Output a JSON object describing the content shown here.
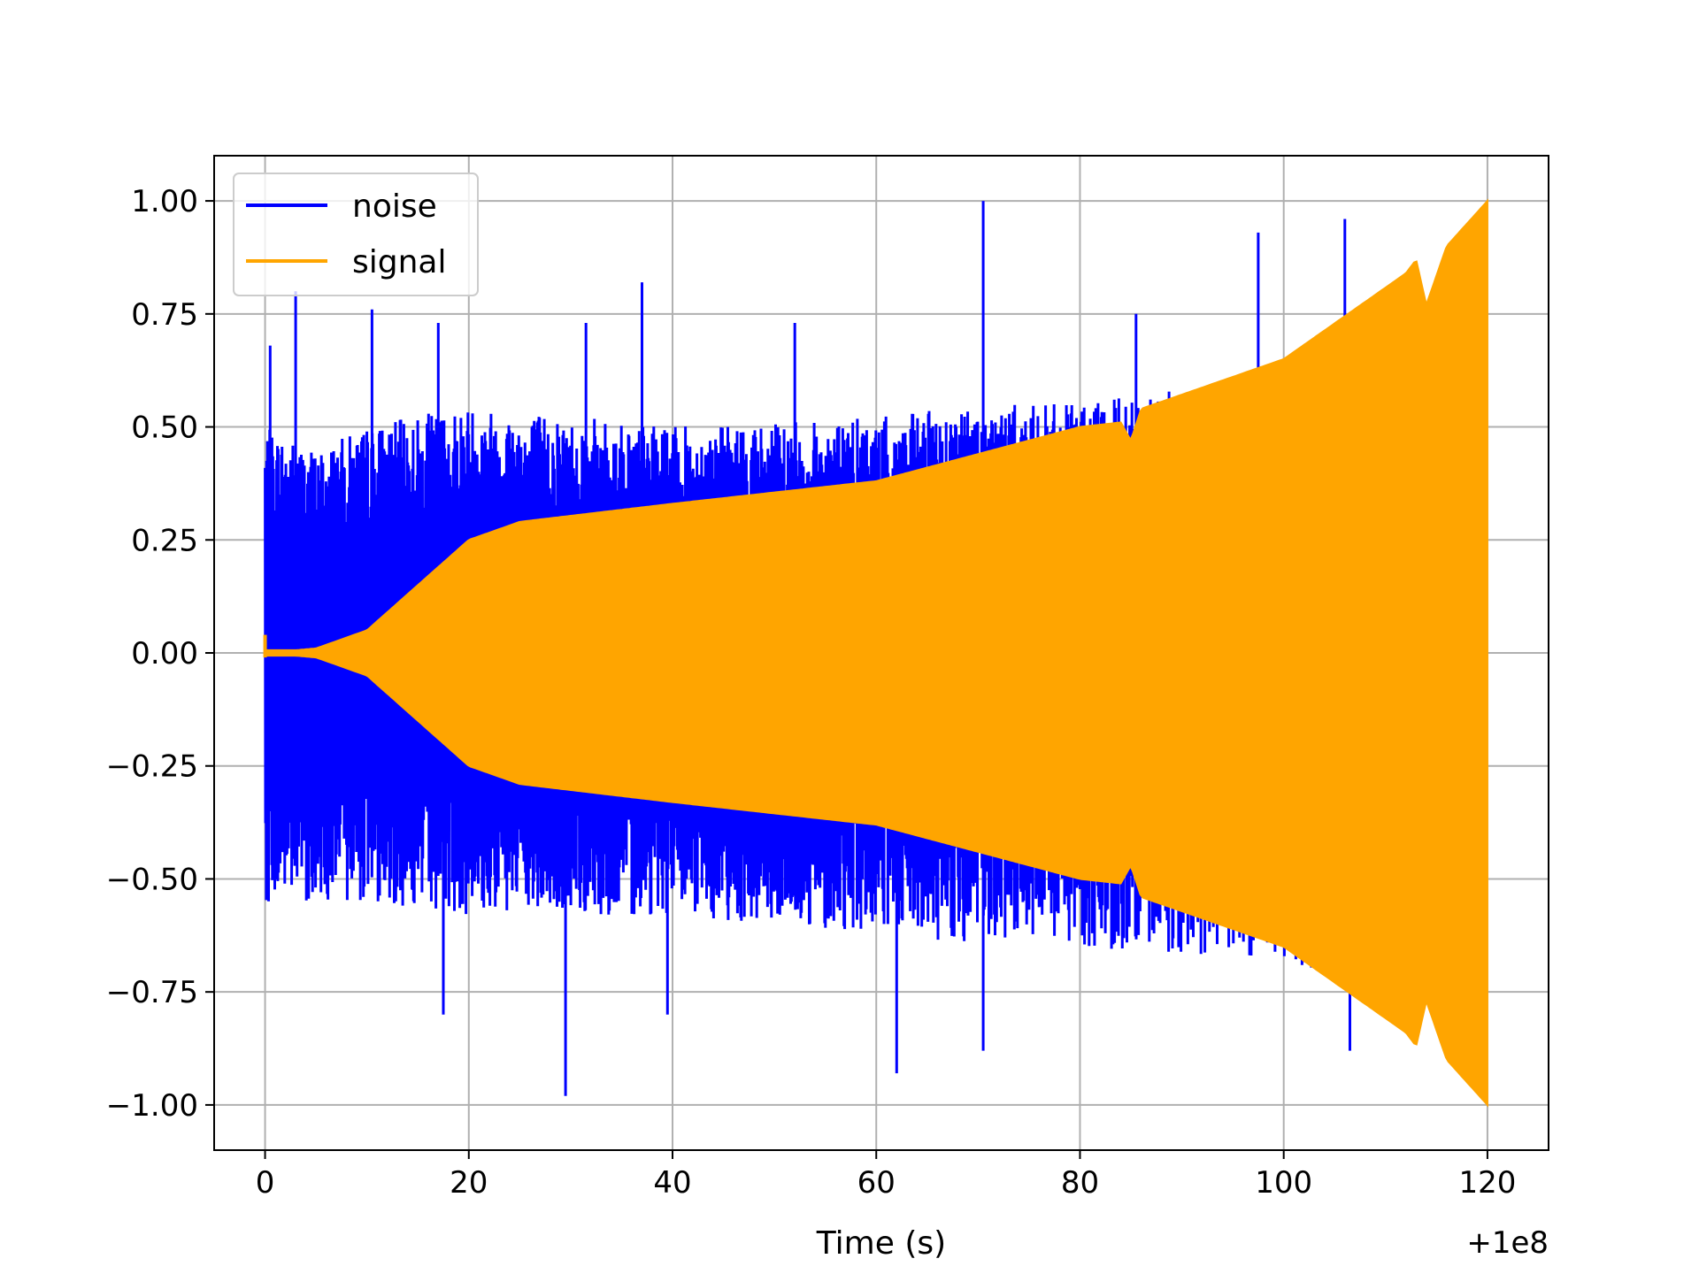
{
  "chart_data": {
    "type": "line",
    "xlabel": "Time (s)",
    "x_offset_label": "+1e8",
    "xlim": [
      -5,
      126
    ],
    "ylim": [
      -1.1,
      1.1
    ],
    "x_ticks": [
      0,
      20,
      40,
      60,
      80,
      100,
      120
    ],
    "x_tick_labels": [
      "0",
      "20",
      "40",
      "60",
      "80",
      "100",
      "120"
    ],
    "y_ticks": [
      1.0,
      0.75,
      0.5,
      0.25,
      0.0,
      -0.25,
      -0.5,
      -0.75,
      -1.0
    ],
    "y_tick_labels": [
      "1.00",
      "0.75",
      "0.50",
      "0.25",
      "0.00",
      "−0.25",
      "−0.50",
      "−0.75",
      "−1.00"
    ],
    "grid": true,
    "legend_position": "top-left",
    "series": [
      {
        "name": "noise",
        "color": "#0000ff",
        "envelope_time": [
          0,
          5,
          10,
          20,
          40,
          60,
          70,
          80,
          100,
          106
        ],
        "envelope_upper": [
          0.5,
          0.45,
          0.5,
          0.55,
          0.5,
          0.52,
          0.55,
          0.55,
          0.62,
          0.7
        ],
        "envelope_lower": [
          -0.55,
          -0.55,
          -0.55,
          -0.58,
          -0.58,
          -0.62,
          -0.65,
          -0.65,
          -0.68,
          -0.72
        ],
        "spikes_upper": [
          [
            0.5,
            0.68
          ],
          [
            3,
            0.8
          ],
          [
            10.5,
            0.76
          ],
          [
            17,
            0.73
          ],
          [
            31.5,
            0.73
          ],
          [
            37,
            0.82
          ],
          [
            52,
            0.73
          ],
          [
            70.5,
            1.0
          ],
          [
            85.5,
            0.75
          ],
          [
            97.5,
            0.93
          ],
          [
            106,
            0.96
          ]
        ],
        "spikes_lower": [
          [
            17.5,
            -0.8
          ],
          [
            29.5,
            -0.98
          ],
          [
            39.5,
            -0.8
          ],
          [
            62,
            -0.93
          ],
          [
            70.5,
            -0.88
          ],
          [
            106.5,
            -0.88
          ]
        ]
      },
      {
        "name": "signal",
        "color": "#ffa500",
        "envelope_time": [
          0,
          5,
          10,
          15,
          20,
          25,
          40,
          60,
          80,
          84,
          85,
          86,
          100,
          112,
          113,
          114,
          116,
          120
        ],
        "envelope_upper": [
          0.0,
          0.01,
          0.05,
          0.15,
          0.25,
          0.29,
          0.33,
          0.38,
          0.5,
          0.51,
          0.47,
          0.54,
          0.65,
          0.84,
          0.87,
          0.77,
          0.9,
          1.0
        ]
      }
    ]
  }
}
